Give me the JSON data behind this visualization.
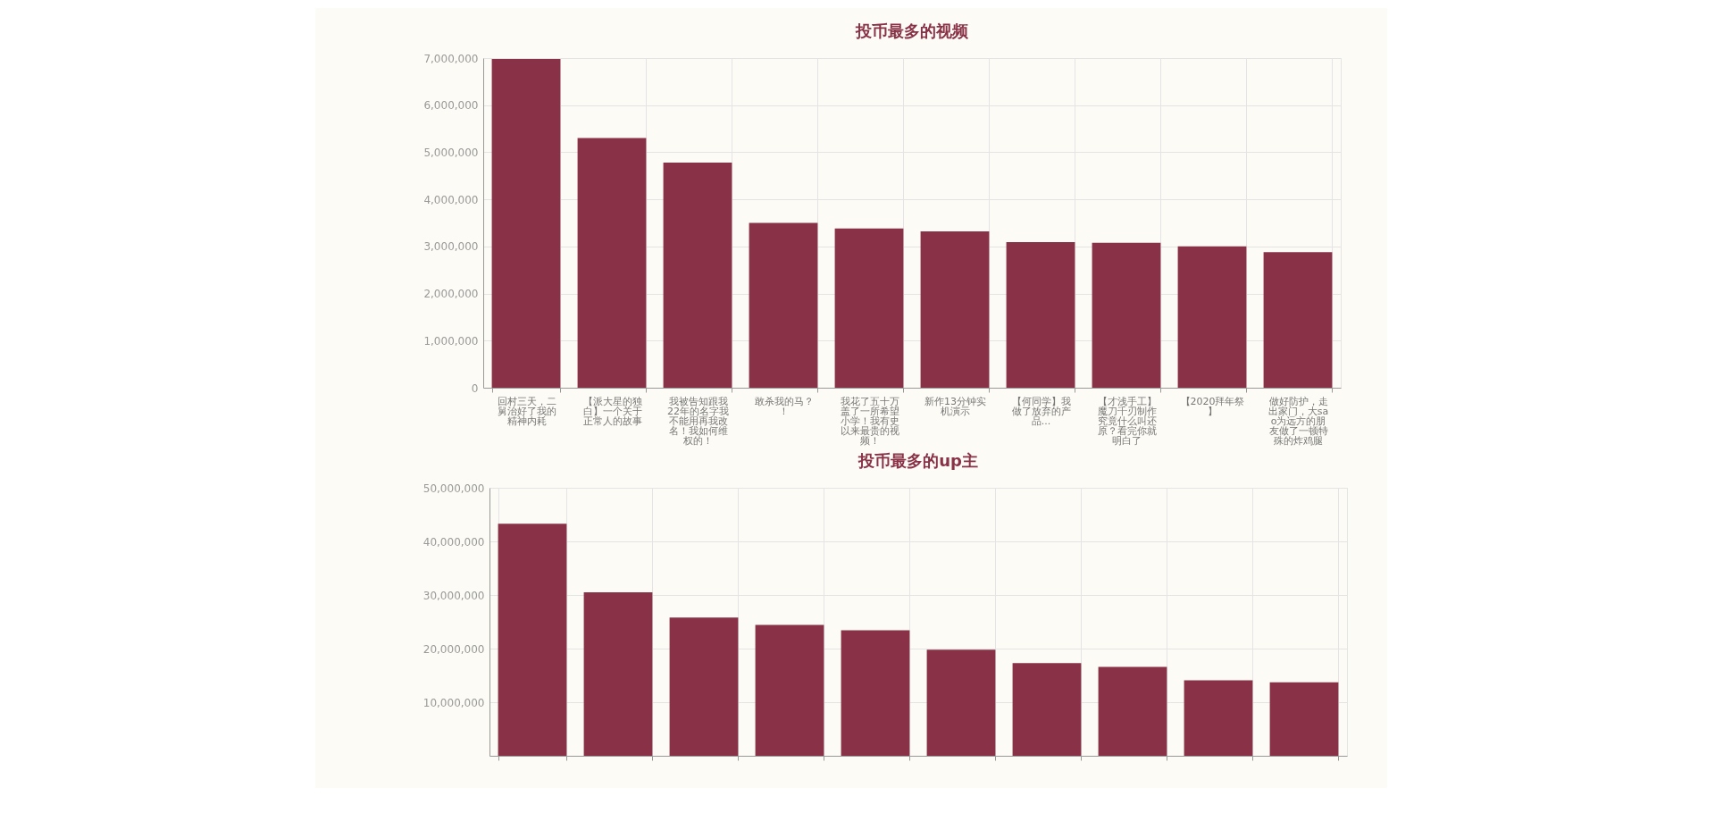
{
  "chart_data": [
    {
      "type": "bar",
      "title": "投币最多的视频",
      "categories": [
        "回村三天，二舅治好了我的精神内耗",
        "【派大星的独白】一个关于正常人的故事",
        "我被告知跟我22年的名字我不能用再我改名！我如何维权的！",
        "敢杀我的马？！",
        "我花了五十万盖了一所希望小学！我有史以来最贵的视频！",
        "新作13分钟实机演示",
        "【何同学】我做了放弃的产品...",
        "【才浅手工】魔刀千刃制作究竟什么叫还原？看完你就明白了",
        "【2020拜年祭】",
        "做好防护，走出家门，大sao为远方的朋友做了一顿特殊的炸鸡腿"
      ],
      "values": [
        6980000,
        5300000,
        4780000,
        3500000,
        3380000,
        3320000,
        3090000,
        3080000,
        3000000,
        2880000
      ],
      "color": "#893247",
      "ylim": [
        0,
        7000000
      ],
      "yticks": [
        0,
        {
          "value": 1000000,
          "label": "1,000,000"
        },
        {
          "value": 2000000,
          "label": "2,000,000"
        },
        {
          "value": 3000000,
          "label": "3,000,000"
        },
        {
          "value": 4000000,
          "label": "4,000,000"
        },
        {
          "value": 5000000,
          "label": "5,000,000"
        },
        {
          "value": 6000000,
          "label": "6,000,000"
        },
        {
          "value": 7000000,
          "label": "7,000,000"
        }
      ],
      "grid": true
    },
    {
      "type": "bar",
      "title": "投币最多的up主",
      "categories": [
        null,
        null,
        null,
        null,
        null,
        null,
        null,
        null,
        null,
        null
      ],
      "values": [
        43300000,
        30500000,
        25800000,
        24400000,
        23400000,
        19800000,
        17300000,
        16600000,
        14100000,
        13700000
      ],
      "color": "#893247",
      "ylim": [
        0,
        50000000
      ],
      "yticks": [
        {
          "value": 10000000,
          "label": "10,000,000"
        },
        {
          "value": 20000000,
          "label": "20,000,000"
        },
        {
          "value": 30000000,
          "label": "30,000,000"
        },
        {
          "value": 40000000,
          "label": "40,000,000"
        },
        {
          "value": 50000000,
          "label": "50,000,000"
        }
      ],
      "grid": true
    }
  ]
}
